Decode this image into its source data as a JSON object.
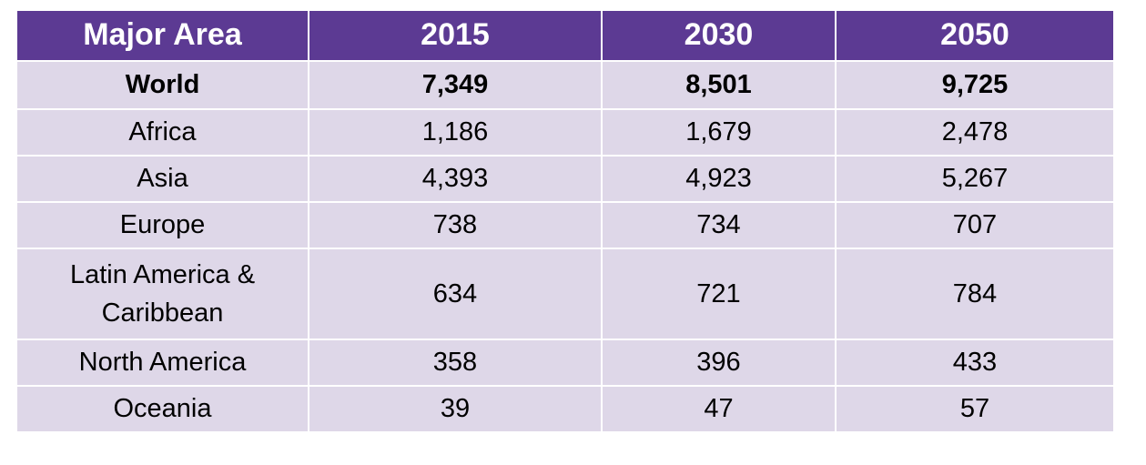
{
  "table": {
    "header": [
      "Major Area",
      "2015",
      "2030",
      "2050"
    ],
    "rows": [
      [
        "World",
        "7,349",
        "8,501",
        "9,725"
      ],
      [
        "Africa",
        "1,186",
        "1,679",
        "2,478"
      ],
      [
        "Asia",
        "4,393",
        "4,923",
        "5,267"
      ],
      [
        "Europe",
        "738",
        "734",
        "707"
      ],
      [
        "Latin America & Caribbean",
        "634",
        "721",
        "784"
      ],
      [
        "North America",
        "358",
        "396",
        "433"
      ],
      [
        "Oceania",
        "39",
        "47",
        "57"
      ]
    ]
  }
}
